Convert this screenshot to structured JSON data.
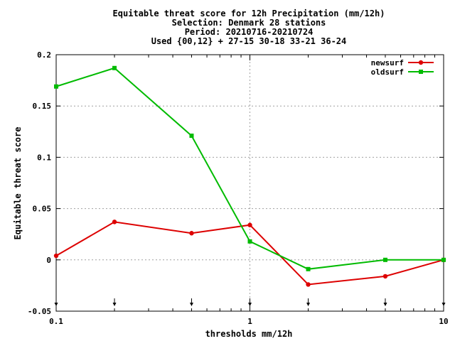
{
  "chart_data": {
    "type": "line",
    "title_lines": [
      "Equitable threat score  for 12h Precipitation (mm/12h)",
      "Selection: Denmark     28 stations",
      "Period: 20210716-20210724",
      "Used {00,12} + 27-15 30-18 33-21 36-24"
    ],
    "xlabel": "thresholds mm/12h",
    "ylabel": "Equitable threat score",
    "xscale": "log",
    "xlim": [
      0.1,
      10
    ],
    "ylim": [
      -0.05,
      0.2
    ],
    "x_ticks": [
      "0.1",
      "1",
      "10"
    ],
    "y_ticks": [
      "-0.05",
      "0",
      "0.05",
      "0.1",
      "0.15",
      "0.2"
    ],
    "grid": true,
    "legend_position": "top-right",
    "x": [
      0.1,
      0.2,
      0.5,
      1,
      2,
      5,
      10
    ],
    "series": [
      {
        "name": "newsurf",
        "color": "#dd0000",
        "values": [
          0.004,
          0.037,
          0.026,
          0.034,
          -0.024,
          -0.016,
          0.0
        ]
      },
      {
        "name": "oldsurf",
        "color": "#00bb00",
        "values": [
          0.169,
          0.187,
          0.121,
          0.018,
          -0.009,
          0.0,
          0.0
        ]
      }
    ],
    "arrow_markers_x": [
      0.1,
      0.2,
      0.5,
      1,
      2,
      5,
      10
    ]
  }
}
